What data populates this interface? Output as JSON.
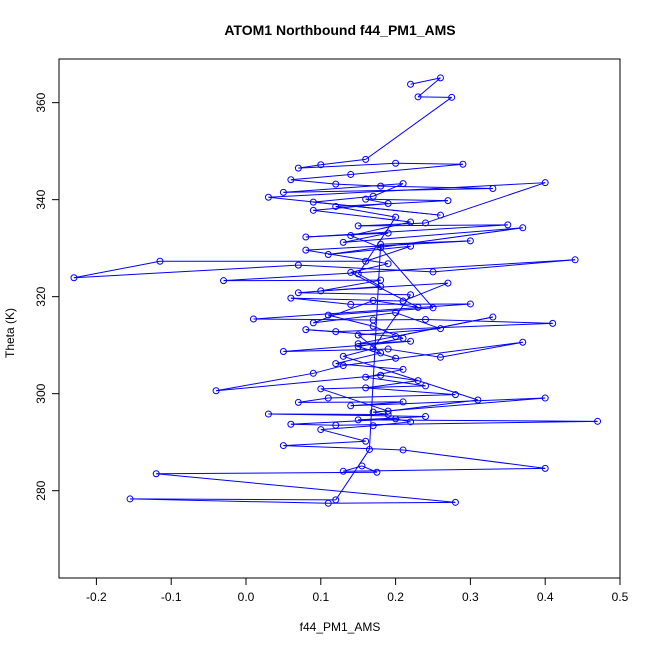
{
  "chart_data": {
    "type": "line",
    "title": "ATOM1 Northbound f44_PM1_AMS",
    "xlabel": "f44_PM1_AMS",
    "ylabel": "Theta (K)",
    "xlim": [
      -0.25,
      0.5
    ],
    "ylim": [
      262,
      369
    ],
    "x_ticks": [
      -0.2,
      -0.1,
      0.0,
      0.1,
      0.2,
      0.3,
      0.4,
      0.5
    ],
    "x_tick_labels": [
      "-0.2",
      "-0.1",
      "0.0",
      "0.1",
      "0.2",
      "0.3",
      "0.4",
      "0.5"
    ],
    "y_ticks": [
      280,
      300,
      320,
      340,
      360
    ],
    "y_tick_labels": [
      "280",
      "300",
      "320",
      "340",
      "360"
    ],
    "series": [
      {
        "name": "ATOM1 Northbound",
        "color": "#0000ff",
        "marker": "open-circle",
        "x": [
          0.22,
          0.26,
          0.23,
          0.275,
          0.16,
          0.1,
          0.07,
          0.2,
          0.29,
          0.14,
          0.06,
          0.12,
          0.18,
          0.33,
          0.05,
          0.21,
          0.17,
          0.09,
          0.26,
          0.03,
          0.4,
          0.24,
          0.15,
          0.35,
          0.08,
          0.19,
          0.13,
          0.37,
          0.11,
          0.22,
          0.16,
          -0.115,
          -0.23,
          0.07,
          0.25,
          0.44,
          -0.03,
          0.18,
          0.1,
          0.27,
          0.21,
          0.06,
          0.14,
          0.3,
          0.01,
          0.17,
          0.24,
          0.41,
          0.12,
          0.08,
          0.2,
          0.33,
          0.15,
          0.22,
          0.05,
          0.19,
          0.26,
          0.37,
          0.13,
          0.09,
          -0.04,
          0.18,
          0.23,
          0.16,
          0.28,
          0.11,
          0.07,
          0.21,
          0.14,
          0.4,
          0.17,
          0.19,
          0.03,
          0.24,
          0.15,
          0.47,
          0.12,
          0.06,
          0.2,
          0.22,
          0.17,
          0.1,
          0.16,
          0.05,
          0.21,
          0.4,
          0.13,
          0.155,
          0.175,
          -0.12,
          0.28,
          0.11,
          -0.155,
          0.12,
          0.165,
          0.18,
          0.3,
          0.08,
          0.19,
          0.14,
          0.23,
          0.17,
          0.09,
          0.2,
          0.26,
          0.15,
          0.18,
          0.12,
          0.21,
          0.16,
          0.24,
          0.1,
          0.19,
          0.31,
          0.13,
          0.17,
          0.22,
          0.07,
          0.18,
          0.15,
          0.2,
          0.12,
          0.27,
          0.16,
          0.19,
          0.09,
          0.22,
          0.14,
          0.18,
          0.25,
          0.11,
          0.17,
          0.21,
          0.15,
          0.2
        ],
        "y": [
          363.8,
          365.1,
          361.2,
          361.1,
          348.3,
          347.2,
          346.5,
          347.5,
          347.3,
          345.2,
          344.1,
          343.2,
          342.8,
          342.3,
          341.5,
          343.3,
          340.7,
          339.5,
          336.8,
          340.5,
          343.5,
          335.2,
          334.6,
          334.8,
          332.3,
          333.1,
          331.2,
          334.2,
          328.7,
          330.4,
          327.3,
          327.3,
          323.9,
          326.5,
          325.1,
          327.6,
          323.3,
          323.4,
          321.2,
          322.8,
          319.1,
          319.7,
          318.4,
          318.5,
          315.4,
          315.2,
          315.3,
          314.5,
          312.8,
          313.2,
          311.8,
          315.8,
          310.3,
          310.8,
          308.7,
          309.2,
          307.5,
          310.6,
          305.8,
          304.2,
          300.6,
          303.8,
          302.7,
          301.2,
          299.8,
          299.1,
          298.2,
          298.3,
          297.5,
          299.1,
          296.2,
          295.7,
          295.8,
          295.3,
          294.6,
          294.3,
          293.5,
          293.7,
          294.8,
          294.2,
          293.4,
          292.6,
          290.2,
          289.3,
          288.4,
          284.6,
          284.0,
          285.1,
          283.8,
          283.5,
          277.6,
          277.4,
          278.3,
          278.1,
          288.5,
          330.8,
          331.5,
          329.6,
          326.8,
          325.0,
          317.8,
          319.2,
          314.6,
          316.7,
          313.4,
          312.1,
          308.4,
          306.2,
          305.0,
          303.4,
          301.6,
          301.0,
          296.4,
          298.7,
          307.7,
          309.3,
          320.4,
          320.8,
          322.1,
          324.7,
          336.4,
          338.6,
          339.8,
          340.1,
          339.2,
          337.8,
          335.4,
          332.6,
          330.1,
          317.7,
          316.2,
          313.9,
          311.4,
          309.7,
          307.3
        ]
      }
    ]
  }
}
